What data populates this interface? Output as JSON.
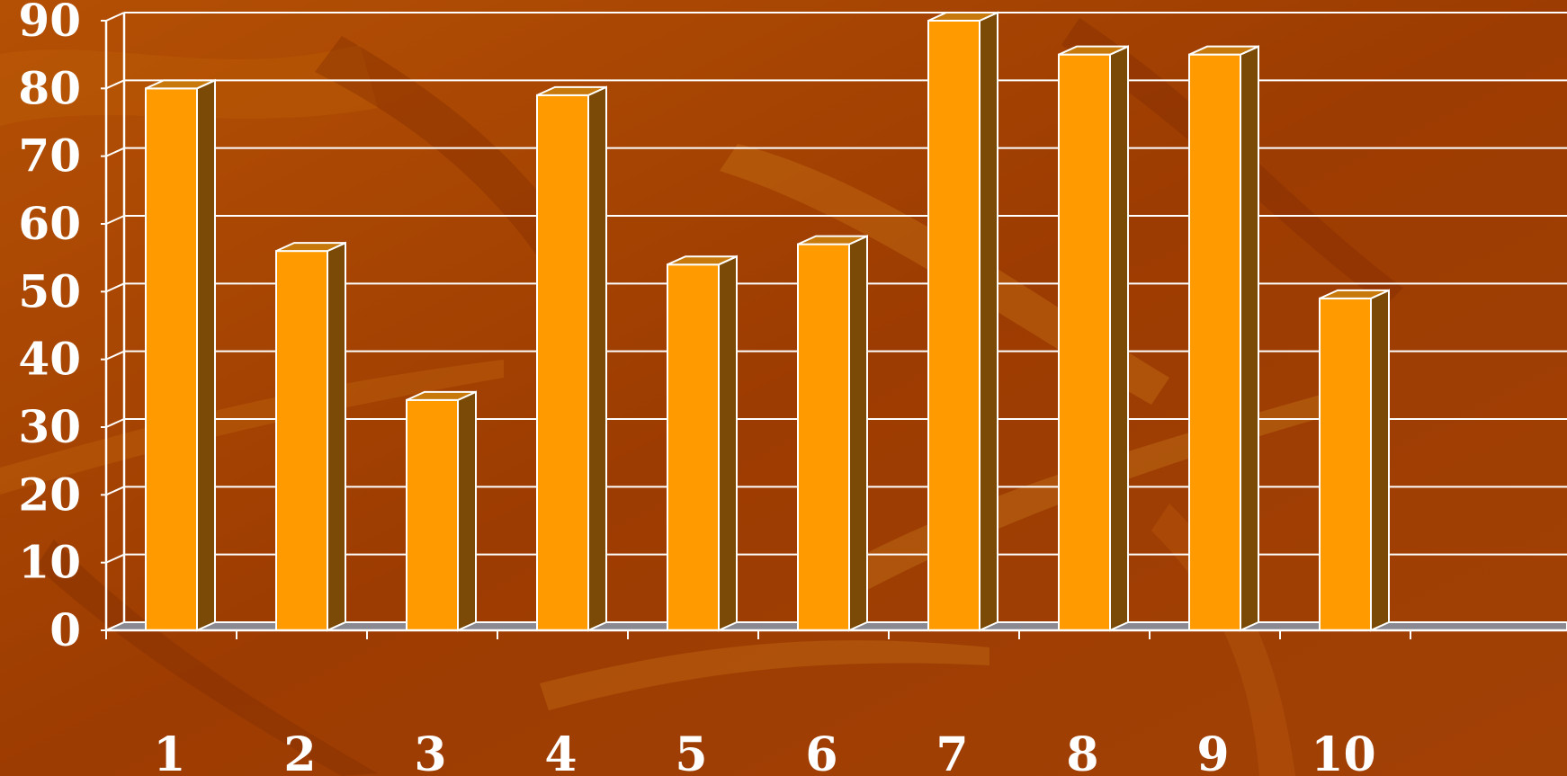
{
  "chart_data": {
    "type": "bar",
    "categories": [
      "1",
      "2",
      "3",
      "4",
      "5",
      "6",
      "7",
      "8",
      "9",
      "10"
    ],
    "values": [
      80,
      56,
      34,
      79,
      54,
      57,
      90,
      85,
      85,
      49
    ],
    "title": "",
    "xlabel": "",
    "ylabel": "",
    "ylim": [
      0,
      90
    ],
    "yticks": [
      "0",
      "10",
      "20",
      "30",
      "40",
      "50",
      "60",
      "70",
      "80",
      "90"
    ],
    "grid": true,
    "style": "3d-column",
    "colors": {
      "bar_front": "#ff9a00",
      "bar_side": "#7a4a06",
      "bar_top": "#c77a0b",
      "background": "#9a3a03",
      "grid": "#ffffff",
      "text": "#ffffff"
    }
  }
}
